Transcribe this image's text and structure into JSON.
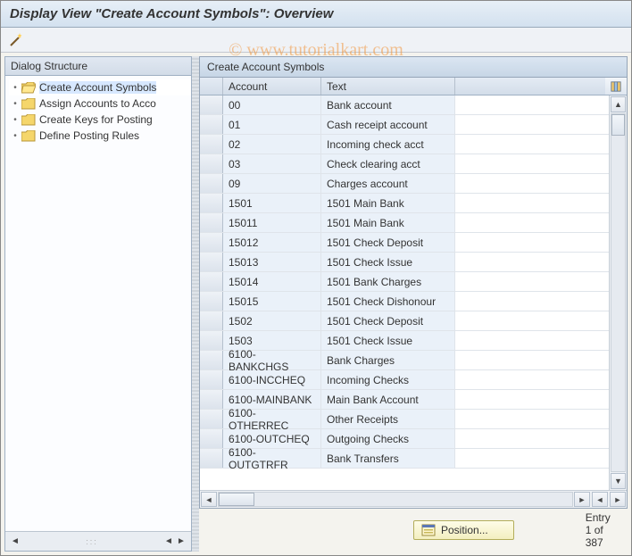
{
  "title": "Display View \"Create Account Symbols\": Overview",
  "watermark": "© www.tutorialkart.com",
  "tree": {
    "header": "Dialog Structure",
    "items": [
      {
        "label": "Create Account Symbols",
        "selected": true,
        "open": true
      },
      {
        "label": "Assign Accounts to Acco",
        "selected": false,
        "open": false
      },
      {
        "label": "Create Keys for Posting",
        "selected": false,
        "open": false
      },
      {
        "label": "Define Posting Rules",
        "selected": false,
        "open": false
      }
    ]
  },
  "table": {
    "title": "Create Account Symbols",
    "columns": {
      "account": "Account",
      "text": "Text"
    },
    "rows": [
      {
        "account": "00",
        "text": "Bank account"
      },
      {
        "account": "01",
        "text": "Cash receipt account"
      },
      {
        "account": "02",
        "text": "Incoming check acct"
      },
      {
        "account": "03",
        "text": "Check clearing acct"
      },
      {
        "account": "09",
        "text": "Charges account"
      },
      {
        "account": "1501",
        "text": "1501 Main Bank"
      },
      {
        "account": "15011",
        "text": "1501 Main Bank"
      },
      {
        "account": "15012",
        "text": "1501 Check Deposit"
      },
      {
        "account": "15013",
        "text": "1501 Check Issue"
      },
      {
        "account": "15014",
        "text": "1501 Bank Charges"
      },
      {
        "account": "15015",
        "text": "1501 Check Dishonour"
      },
      {
        "account": "1502",
        "text": "1501 Check Deposit"
      },
      {
        "account": "1503",
        "text": "1501 Check Issue"
      },
      {
        "account": "6100-BANKCHGS",
        "text": "Bank Charges"
      },
      {
        "account": "6100-INCCHEQ",
        "text": "Incoming Checks"
      },
      {
        "account": "6100-MAINBANK",
        "text": "Main Bank Account"
      },
      {
        "account": "6100-OTHERREC",
        "text": "Other Receipts"
      },
      {
        "account": "6100-OUTCHEQ",
        "text": "Outgoing Checks"
      },
      {
        "account": "6100-OUTGTRFR",
        "text": "Bank Transfers"
      }
    ]
  },
  "footer": {
    "position_label": "Position...",
    "entry_status": "Entry 1 of 387"
  },
  "colors": {
    "title_bg": "#dde7f1",
    "cell_bg": "#eaf1f9",
    "border": "#95a5b8"
  }
}
